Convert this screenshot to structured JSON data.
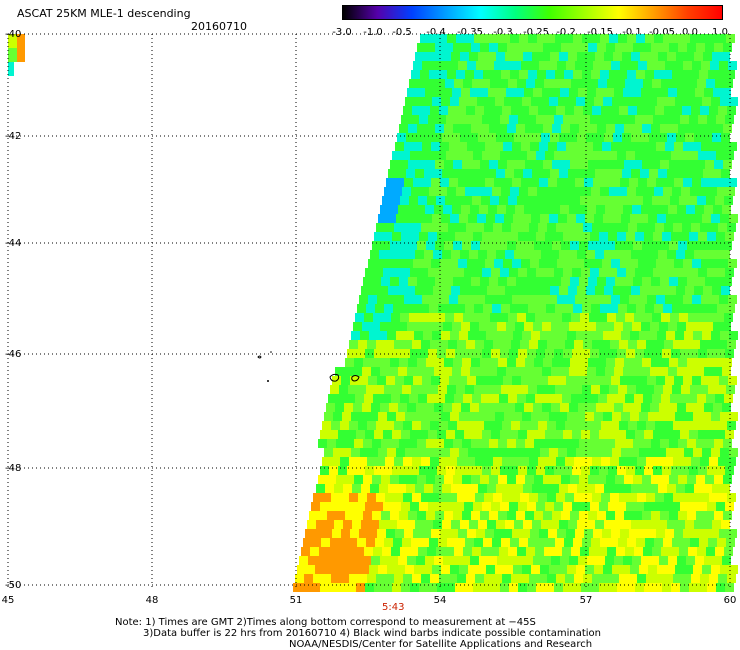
{
  "header": {
    "title": "ASCAT 25KM MLE-1 descending",
    "date": "20160710"
  },
  "colorbar": {
    "labels": [
      "-3.0",
      "-1.0",
      "-0.5",
      "-0.4",
      "-0.35",
      "-0.3",
      "-0.25",
      "-0.2",
      "-0.15",
      "-0.1",
      "-0.05",
      "0.0",
      "1.0"
    ],
    "colors": [
      "#000000",
      "#5500aa",
      "#0040ff",
      "#00a0ff",
      "#00ffff",
      "#00ff80",
      "#40ff00",
      "#a0ff00",
      "#ffff00",
      "#ffa000",
      "#ff4000",
      "#ff0000"
    ]
  },
  "axes": {
    "lat_labels": [
      "-40",
      "-42",
      "-44",
      "-46",
      "-48",
      "-50"
    ],
    "lon_labels": [
      "45",
      "48",
      "51",
      "54",
      "57",
      "60"
    ]
  },
  "swath": {
    "time_label": "5:43"
  },
  "notes": {
    "line1": "Note: 1) Times are GMT 2)Times along bottom correspond to measurement at −45S",
    "line2": "3)Data buffer is 22 hrs from 20160710 4) Black wind barbs indicate possible contamination",
    "line3": "NOAA/NESDIS/Center for Satellite Applications and Research"
  }
}
